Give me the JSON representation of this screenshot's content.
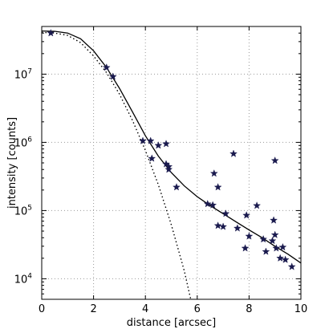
{
  "chart_data": {
    "type": "scatter",
    "xlabel": "distance [arcsec]",
    "ylabel": "intensity [counts]",
    "xlim": [
      0,
      10
    ],
    "ylim": [
      5000,
      50000000
    ],
    "yscale": "log",
    "grid": true,
    "x_ticks": [
      "0",
      "2",
      "4",
      "6",
      "8",
      "10"
    ],
    "y_ticks": [
      {
        "base": "10",
        "exp": "4",
        "value": 10000
      },
      {
        "base": "10",
        "exp": "5",
        "value": 100000
      },
      {
        "base": "10",
        "exp": "6",
        "value": 1000000
      },
      {
        "base": "10",
        "exp": "7",
        "value": 10000000
      }
    ],
    "colors": {
      "markers": "#1a1a4e",
      "fit_line": "#000000",
      "grid": "#999999"
    },
    "series": [
      {
        "marker": "star",
        "points": [
          [
            0.35,
            40000000
          ],
          [
            2.5,
            12500000
          ],
          [
            2.75,
            9200000
          ],
          [
            3.9,
            1050000
          ],
          [
            4.2,
            1050000
          ],
          [
            4.25,
            580000
          ],
          [
            4.5,
            900000
          ],
          [
            4.8,
            950000
          ],
          [
            4.8,
            480000
          ],
          [
            4.9,
            440000
          ],
          [
            4.9,
            400000
          ],
          [
            5.2,
            220000
          ],
          [
            6.4,
            125000
          ],
          [
            6.6,
            120000
          ],
          [
            6.65,
            350000
          ],
          [
            6.8,
            220000
          ],
          [
            6.8,
            60000
          ],
          [
            7.0,
            58000
          ],
          [
            7.1,
            90000
          ],
          [
            7.4,
            680000
          ],
          [
            7.55,
            55000
          ],
          [
            7.85,
            28000
          ],
          [
            7.9,
            85000
          ],
          [
            8.0,
            42000
          ],
          [
            8.3,
            118000
          ],
          [
            8.55,
            38000
          ],
          [
            8.65,
            25000
          ],
          [
            8.9,
            36000
          ],
          [
            8.95,
            72000
          ],
          [
            9.0,
            44000
          ],
          [
            9.0,
            540000
          ],
          [
            9.05,
            28000
          ],
          [
            9.2,
            20000
          ],
          [
            9.3,
            29000
          ],
          [
            9.4,
            19000
          ],
          [
            9.65,
            15000
          ]
        ]
      }
    ],
    "curves": [
      {
        "style": "solid",
        "points": [
          [
            0.0,
            43000000
          ],
          [
            0.5,
            42500000
          ],
          [
            1.0,
            40000000
          ],
          [
            1.5,
            33000000
          ],
          [
            2.0,
            22000000
          ],
          [
            2.5,
            12500000
          ],
          [
            3.0,
            6200000
          ],
          [
            3.5,
            2800000
          ],
          [
            4.0,
            1250000
          ],
          [
            4.5,
            630000
          ],
          [
            5.0,
            360000
          ],
          [
            5.5,
            230000
          ],
          [
            6.0,
            160000
          ],
          [
            6.5,
            118000
          ],
          [
            7.0,
            90000
          ],
          [
            7.5,
            68000
          ],
          [
            8.0,
            52000
          ],
          [
            8.5,
            40000
          ],
          [
            9.0,
            30000
          ],
          [
            9.5,
            23000
          ],
          [
            10.0,
            17000
          ]
        ]
      },
      {
        "style": "dotted",
        "points": [
          [
            0.0,
            41000000
          ],
          [
            0.5,
            40000000
          ],
          [
            1.0,
            37000000
          ],
          [
            1.5,
            29000000
          ],
          [
            2.0,
            18500000
          ],
          [
            2.5,
            10500000
          ],
          [
            3.0,
            5100000
          ],
          [
            3.5,
            2100000
          ],
          [
            4.0,
            760000
          ],
          [
            4.5,
            240000
          ],
          [
            5.0,
            62000
          ],
          [
            5.5,
            13000
          ],
          [
            5.75,
            5000
          ]
        ]
      }
    ]
  }
}
